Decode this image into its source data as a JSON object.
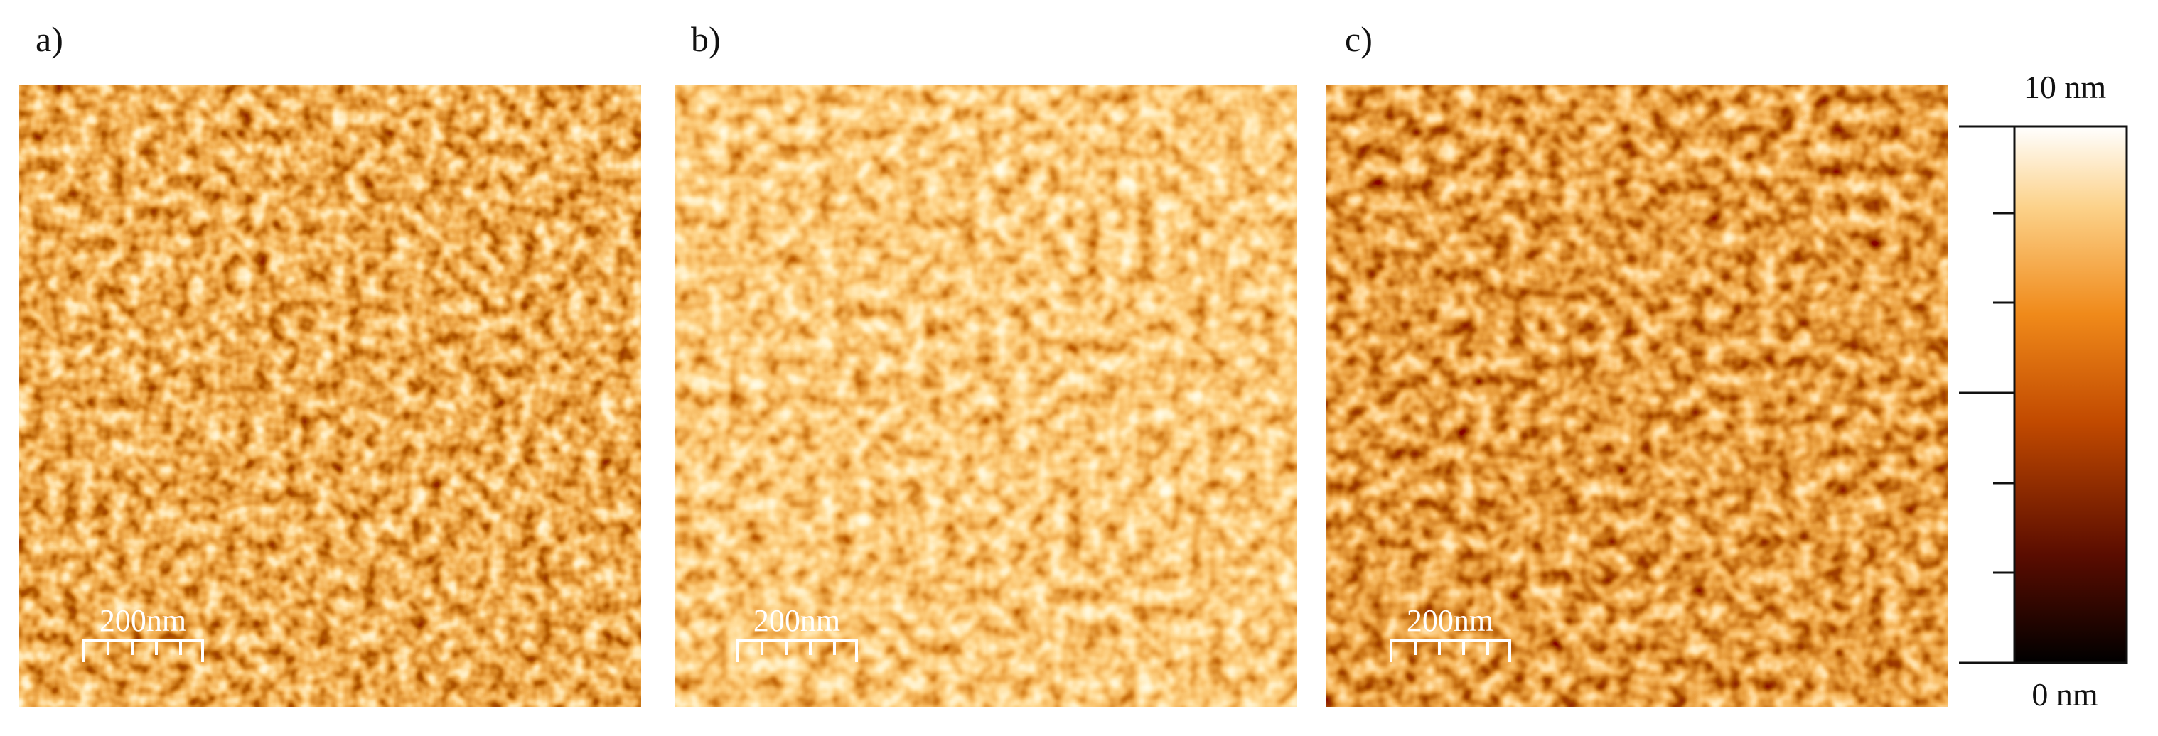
{
  "panels": [
    {
      "label": "a)",
      "scale_bar": "200nm"
    },
    {
      "label": "b)",
      "scale_bar": "200nm"
    },
    {
      "label": "c)",
      "scale_bar": "200nm"
    }
  ],
  "colorbar": {
    "max_label": "10 nm",
    "min_label": "0 nm"
  }
}
